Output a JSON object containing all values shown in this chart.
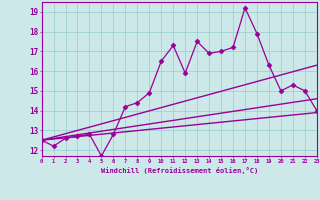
{
  "xlabel": "Windchill (Refroidissement éolien,°C)",
  "background_color": "#cce8e8",
  "line_color": "#990099",
  "grid_color": "#99cccc",
  "xlim": [
    0,
    23
  ],
  "ylim": [
    11.7,
    19.5
  ],
  "xtick_labels": [
    "0",
    "1",
    "2",
    "3",
    "4",
    "5",
    "6",
    "7",
    "8",
    "9",
    "10",
    "11",
    "12",
    "13",
    "14",
    "15",
    "16",
    "17",
    "18",
    "19",
    "20",
    "21",
    "22",
    "23"
  ],
  "ytick_labels": [
    "12",
    "13",
    "14",
    "15",
    "16",
    "17",
    "18",
    "19"
  ],
  "ytick_values": [
    12,
    13,
    14,
    15,
    16,
    17,
    18,
    19
  ],
  "series": [
    {
      "x": [
        0,
        1,
        2,
        3,
        4,
        5,
        6,
        7,
        8,
        9,
        10,
        11,
        12,
        13,
        14,
        15,
        16,
        17,
        18,
        19,
        20,
        21,
        22,
        23
      ],
      "y": [
        12.5,
        12.2,
        12.6,
        12.7,
        12.8,
        11.7,
        12.8,
        14.2,
        14.4,
        14.9,
        16.5,
        17.3,
        15.9,
        17.5,
        16.9,
        17.0,
        17.2,
        19.2,
        17.9,
        16.3,
        15.0,
        15.3,
        15.0,
        14.0
      ],
      "marker": "D",
      "markersize": 2.5,
      "linewidth": 0.9
    },
    {
      "x": [
        0,
        23
      ],
      "y": [
        12.5,
        16.3
      ],
      "marker": null,
      "linewidth": 1.0
    },
    {
      "x": [
        0,
        23
      ],
      "y": [
        12.5,
        14.6
      ],
      "marker": null,
      "linewidth": 1.0
    },
    {
      "x": [
        0,
        23
      ],
      "y": [
        12.5,
        13.9
      ],
      "marker": null,
      "linewidth": 1.0
    }
  ]
}
